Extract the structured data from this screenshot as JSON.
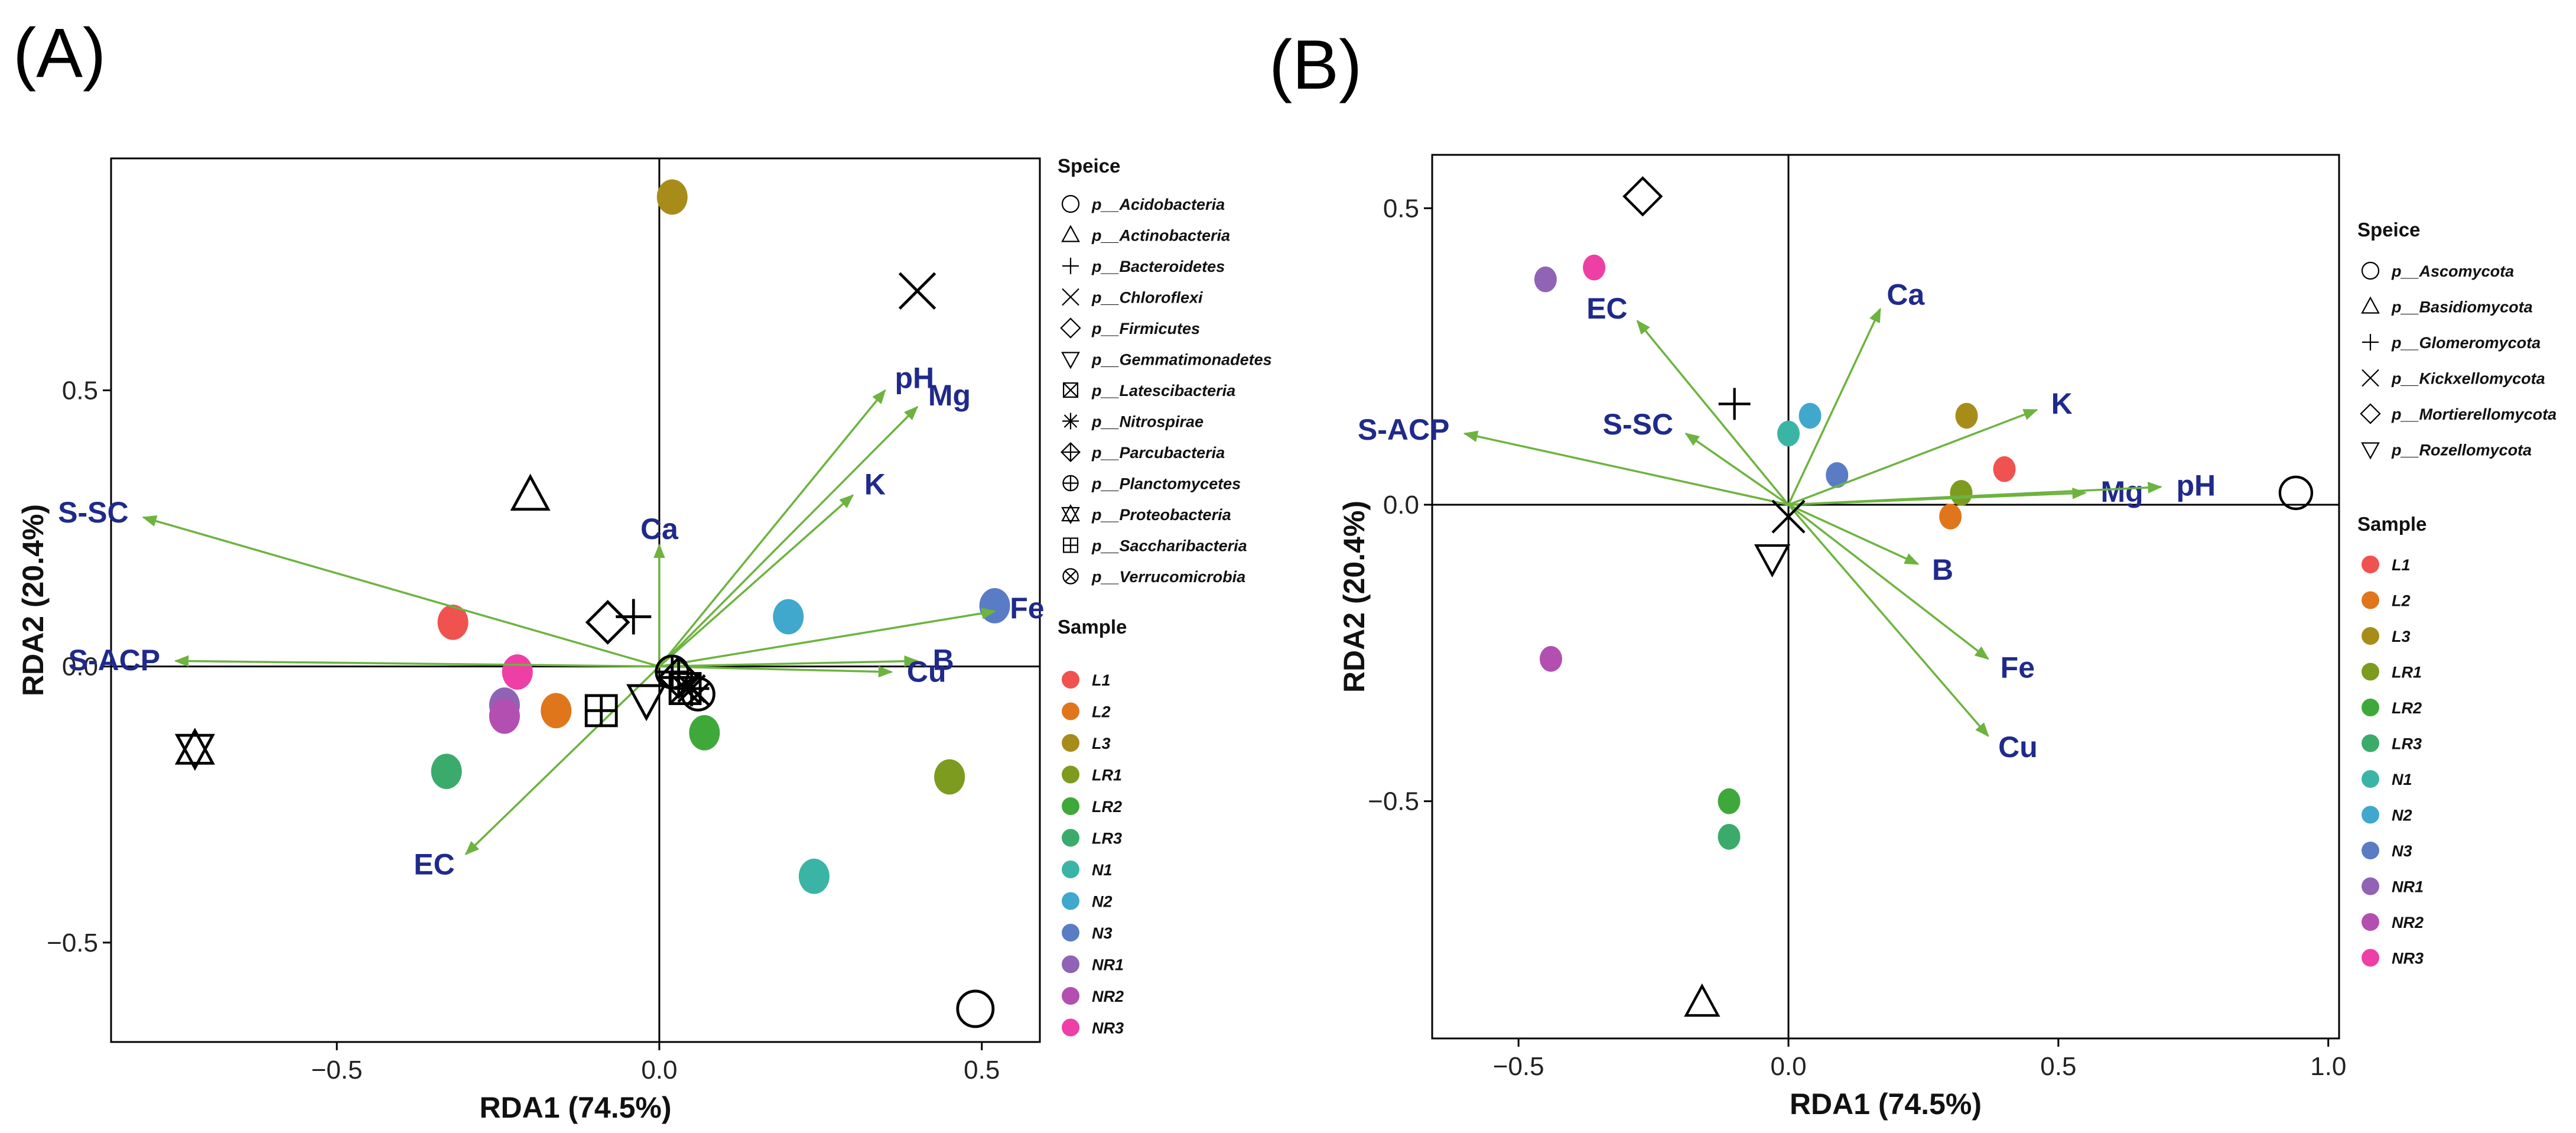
{
  "chart_data": [
    {
      "type": "scatter",
      "panel_label": "(A)",
      "xlabel": "RDA1 (74.5%)",
      "ylabel": "RDA2 (20.4%)",
      "xlim": [
        -0.85,
        0.59
      ],
      "ylim": [
        -0.68,
        0.92
      ],
      "xticks": [
        -0.5,
        0.0,
        0.5
      ],
      "yticks": [
        -0.5,
        0.0,
        0.5
      ],
      "xtick_labels": [
        "−0.5",
        "0.0",
        "0.5"
      ],
      "ytick_labels": [
        "−0.5",
        "0.0",
        "0.5"
      ],
      "grid": false,
      "reference_lines": [
        0,
        0
      ],
      "vectors": [
        {
          "label": "pH",
          "x": 0.35,
          "y": 0.5
        },
        {
          "label": "Mg",
          "x": 0.4,
          "y": 0.47
        },
        {
          "label": "K",
          "x": 0.3,
          "y": 0.31
        },
        {
          "label": "Ca",
          "x": 0.0,
          "y": 0.22
        },
        {
          "label": "Fe",
          "x": 0.52,
          "y": 0.1
        },
        {
          "label": "B",
          "x": 0.4,
          "y": 0.01
        },
        {
          "label": "Cu",
          "x": 0.36,
          "y": -0.01
        },
        {
          "label": "S-SC",
          "x": -0.8,
          "y": 0.27
        },
        {
          "label": "S-ACP",
          "x": -0.75,
          "y": 0.01
        },
        {
          "label": "EC",
          "x": -0.3,
          "y": -0.34
        }
      ],
      "species_legend_title": "Speice",
      "species": [
        {
          "label": "p__Acidobacteria",
          "marker": "circle",
          "x": 0.49,
          "y": -0.62
        },
        {
          "label": "p__Actinobacteria",
          "marker": "triangle-up",
          "x": -0.2,
          "y": 0.31
        },
        {
          "label": "p__Bacteroidetes",
          "marker": "plus",
          "x": -0.04,
          "y": 0.09
        },
        {
          "label": "p__Chloroflexi",
          "marker": "cross",
          "x": 0.4,
          "y": 0.68
        },
        {
          "label": "p__Firmicutes",
          "marker": "diamond",
          "x": -0.08,
          "y": 0.08
        },
        {
          "label": "p__Gemmatimonadetes",
          "marker": "triangle-down",
          "x": -0.02,
          "y": -0.06
        },
        {
          "label": "p__Latescibacteria",
          "marker": "square-cross",
          "x": 0.04,
          "y": -0.04
        },
        {
          "label": "p__Nitrospirae",
          "marker": "asterisk",
          "x": 0.05,
          "y": -0.04
        },
        {
          "label": "p__Parcubacteria",
          "marker": "diamond-plus",
          "x": 0.03,
          "y": -0.02
        },
        {
          "label": "p__Planctomycetes",
          "marker": "circle-plus",
          "x": 0.02,
          "y": -0.01
        },
        {
          "label": "p__Proteobacteria",
          "marker": "hourglass",
          "x": -0.72,
          "y": -0.15
        },
        {
          "label": "p__Saccharibacteria",
          "marker": "square-plus",
          "x": -0.09,
          "y": -0.08
        },
        {
          "label": "p__Verrucomicrobia",
          "marker": "circle-cross",
          "x": 0.06,
          "y": -0.05
        }
      ],
      "sample_legend_title": "Sample",
      "samples": [
        {
          "label": "L1",
          "color": "#f0524f",
          "x": -0.32,
          "y": 0.08
        },
        {
          "label": "L2",
          "color": "#e0761c",
          "x": -0.16,
          "y": -0.08
        },
        {
          "label": "L3",
          "color": "#a88c1a",
          "x": 0.02,
          "y": 0.85
        },
        {
          "label": "LR1",
          "color": "#7d9b1e",
          "x": 0.45,
          "y": -0.2
        },
        {
          "label": "LR2",
          "color": "#3fa83a",
          "x": 0.07,
          "y": -0.12
        },
        {
          "label": "LR3",
          "color": "#3bab6c",
          "x": -0.33,
          "y": -0.19
        },
        {
          "label": "N1",
          "color": "#3ab5a5",
          "x": 0.24,
          "y": -0.38
        },
        {
          "label": "N2",
          "color": "#3fa8cc",
          "x": 0.2,
          "y": 0.09
        },
        {
          "label": "N3",
          "color": "#5a7cc4",
          "x": 0.52,
          "y": 0.11
        },
        {
          "label": "NR1",
          "color": "#9063b4",
          "x": -0.24,
          "y": -0.07
        },
        {
          "label": "NR2",
          "color": "#b34fb0",
          "x": -0.24,
          "y": -0.09
        },
        {
          "label": "NR3",
          "color": "#ee3fa6",
          "x": -0.22,
          "y": -0.01
        }
      ]
    },
    {
      "type": "scatter",
      "panel_label": "(B)",
      "xlabel": "RDA1 (74.5%)",
      "ylabel": "RDA2 (20.4%)",
      "xlim": [
        -0.66,
        1.02
      ],
      "ylim": [
        -0.9,
        0.59
      ],
      "xticks": [
        -0.5,
        0.0,
        0.5,
        1.0
      ],
      "yticks": [
        -0.5,
        0.0,
        0.5
      ],
      "xtick_labels": [
        "−0.5",
        "0.0",
        "0.5",
        "1.0"
      ],
      "ytick_labels": [
        "−0.5",
        "0.0",
        "0.5"
      ],
      "grid": false,
      "reference_lines": [
        0,
        0
      ],
      "vectors": [
        {
          "label": "Ca",
          "x": 0.17,
          "y": 0.33
        },
        {
          "label": "EC",
          "x": -0.28,
          "y": 0.31
        },
        {
          "label": "S-ACP",
          "x": -0.6,
          "y": 0.12
        },
        {
          "label": "S-SC",
          "x": -0.19,
          "y": 0.12
        },
        {
          "label": "K",
          "x": 0.46,
          "y": 0.16
        },
        {
          "label": "Mg",
          "x": 0.55,
          "y": 0.02
        },
        {
          "label": "pH",
          "x": 0.69,
          "y": 0.03
        },
        {
          "label": "B",
          "x": 0.24,
          "y": -0.1
        },
        {
          "label": "Fe",
          "x": 0.37,
          "y": -0.26
        },
        {
          "label": "Cu",
          "x": 0.37,
          "y": -0.39
        }
      ],
      "species_legend_title": "Speice",
      "species": [
        {
          "label": "p__Ascomycota",
          "marker": "circle",
          "x": 0.94,
          "y": 0.02
        },
        {
          "label": "p__Basidiomycota",
          "marker": "triangle-up",
          "x": -0.16,
          "y": -0.84
        },
        {
          "label": "p__Glomeromycota",
          "marker": "plus",
          "x": -0.1,
          "y": 0.17
        },
        {
          "label": "p__Kickxellomycota",
          "marker": "cross",
          "x": 0.0,
          "y": -0.02
        },
        {
          "label": "p__Mortierellomycota",
          "marker": "diamond",
          "x": -0.27,
          "y": 0.52
        },
        {
          "label": "p__Rozellomycota",
          "marker": "triangle-down",
          "x": -0.03,
          "y": -0.09
        }
      ],
      "sample_legend_title": "Sample",
      "samples": [
        {
          "label": "L1",
          "color": "#f0524f",
          "x": 0.4,
          "y": 0.06
        },
        {
          "label": "L2",
          "color": "#e0761c",
          "x": 0.3,
          "y": -0.02
        },
        {
          "label": "L3",
          "color": "#a88c1a",
          "x": 0.33,
          "y": 0.15
        },
        {
          "label": "LR1",
          "color": "#7d9b1e",
          "x": 0.32,
          "y": 0.02
        },
        {
          "label": "LR2",
          "color": "#3fa83a",
          "x": -0.11,
          "y": -0.5
        },
        {
          "label": "LR3",
          "color": "#3bab6c",
          "x": -0.11,
          "y": -0.56
        },
        {
          "label": "N1",
          "color": "#3ab5a5",
          "x": 0.0,
          "y": 0.12
        },
        {
          "label": "N2",
          "color": "#3fa8cc",
          "x": 0.04,
          "y": 0.15
        },
        {
          "label": "N3",
          "color": "#5a7cc4",
          "x": 0.09,
          "y": 0.05
        },
        {
          "label": "NR1",
          "color": "#9063b4",
          "x": -0.45,
          "y": 0.38
        },
        {
          "label": "NR2",
          "color": "#b34fb0",
          "x": -0.44,
          "y": -0.26
        },
        {
          "label": "NR3",
          "color": "#ee3fa6",
          "x": -0.36,
          "y": 0.4
        }
      ]
    }
  ],
  "colors": {
    "vector": "#6db33f",
    "vector_label": "#1f2a8a"
  }
}
